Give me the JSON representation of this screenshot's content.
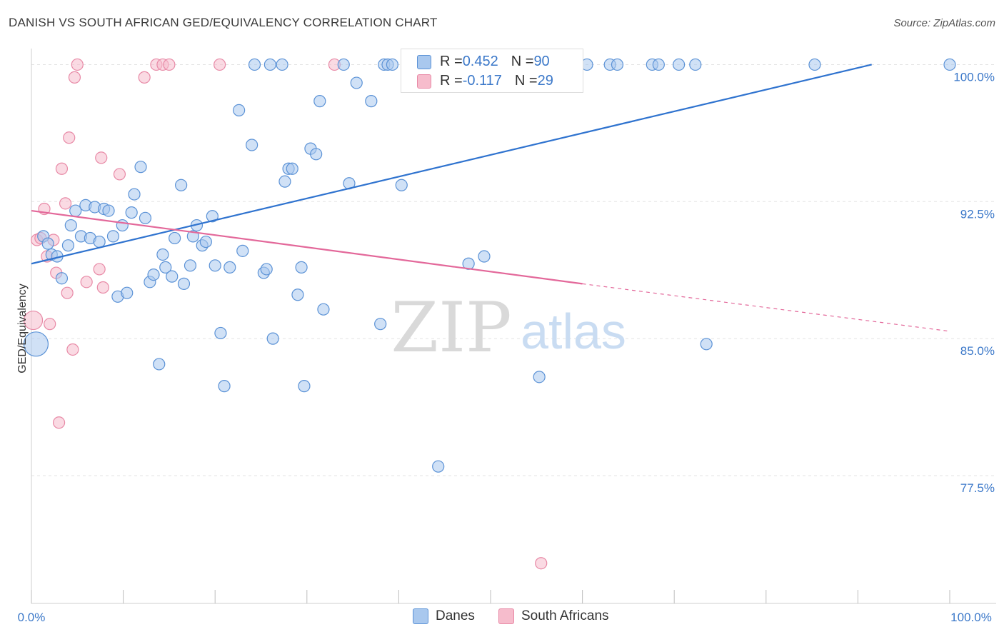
{
  "title": "DANISH VS SOUTH AFRICAN GED/EQUIVALENCY CORRELATION CHART",
  "source": "Source: ZipAtlas.com",
  "watermark": {
    "zip": "ZIP",
    "atlas": "atlas"
  },
  "colors": {
    "danes_fill": "#a9c8ee",
    "danes_stroke": "#5b92d6",
    "danes_line": "#2f73cf",
    "sa_fill": "#f6bccc",
    "sa_stroke": "#e889a6",
    "sa_line": "#e3689a",
    "tick_text": "#3b78c9",
    "grid": "#e3e3e3"
  },
  "stats": [
    {
      "r_label": "R = ",
      "r_value": "0.452",
      "n_label": "N = ",
      "n_value": "90"
    },
    {
      "r_label": "R = ",
      "r_value": "-0.117",
      "n_label": "N = ",
      "n_value": "29"
    }
  ],
  "chart_data": {
    "type": "scatter",
    "title": "DANISH VS SOUTH AFRICAN GED/EQUIVALENCY CORRELATION CHART",
    "xlabel": "",
    "ylabel": "GED/Equivalency",
    "xlim": [
      0,
      100
    ],
    "ylim": [
      70.5,
      100.8
    ],
    "x_tick_labels": [
      "0.0%",
      "100.0%"
    ],
    "y_ticks": [
      77.5,
      85.0,
      92.5,
      100.0
    ],
    "y_tick_labels": [
      "77.5%",
      "85.0%",
      "92.5%",
      "100.0%"
    ],
    "legend": [
      "Danes",
      "South Africans"
    ],
    "series": [
      {
        "name": "Danes",
        "trend": {
          "x": [
            0,
            91.5
          ],
          "y": [
            89.1,
            100.0
          ]
        },
        "points": [
          [
            0.5,
            84.7,
            3
          ],
          [
            1.3,
            90.6,
            1
          ],
          [
            1.8,
            90.2,
            1
          ],
          [
            2.2,
            89.6,
            1
          ],
          [
            2.8,
            89.5,
            1
          ],
          [
            3.3,
            88.3,
            1
          ],
          [
            4.0,
            90.1,
            1
          ],
          [
            4.3,
            91.2,
            1
          ],
          [
            4.8,
            92.0,
            1
          ],
          [
            5.4,
            90.6,
            1
          ],
          [
            5.9,
            92.3,
            1
          ],
          [
            6.4,
            90.5,
            1
          ],
          [
            6.9,
            92.2,
            1
          ],
          [
            7.4,
            90.3,
            1
          ],
          [
            7.9,
            92.1,
            1
          ],
          [
            8.4,
            92.0,
            1
          ],
          [
            8.9,
            90.6,
            1
          ],
          [
            9.4,
            87.3,
            1
          ],
          [
            9.9,
            91.2,
            1
          ],
          [
            10.4,
            87.5,
            1
          ],
          [
            10.9,
            91.9,
            1
          ],
          [
            11.2,
            92.9,
            1
          ],
          [
            11.9,
            94.4,
            1
          ],
          [
            12.4,
            91.6,
            1
          ],
          [
            12.9,
            88.1,
            1
          ],
          [
            13.3,
            88.5,
            1
          ],
          [
            13.9,
            83.6,
            1
          ],
          [
            14.3,
            89.6,
            1
          ],
          [
            14.6,
            88.9,
            1
          ],
          [
            15.3,
            88.4,
            1
          ],
          [
            15.6,
            90.5,
            1
          ],
          [
            16.3,
            93.4,
            1
          ],
          [
            16.6,
            88.0,
            1
          ],
          [
            17.3,
            89.0,
            1
          ],
          [
            17.6,
            90.6,
            1
          ],
          [
            18.0,
            91.2,
            1
          ],
          [
            18.6,
            90.1,
            1
          ],
          [
            19.0,
            90.3,
            1
          ],
          [
            19.7,
            91.7,
            1
          ],
          [
            20.0,
            89.0,
            1
          ],
          [
            20.6,
            85.3,
            1
          ],
          [
            21.0,
            82.4,
            1
          ],
          [
            21.6,
            88.9,
            1
          ],
          [
            22.6,
            97.5,
            1
          ],
          [
            23.0,
            89.8,
            1
          ],
          [
            24.0,
            95.6,
            1
          ],
          [
            24.3,
            100.0,
            1
          ],
          [
            25.3,
            88.6,
            1
          ],
          [
            25.6,
            88.8,
            1
          ],
          [
            26.0,
            100.0,
            1
          ],
          [
            26.3,
            85.0,
            1
          ],
          [
            27.3,
            100.0,
            1
          ],
          [
            27.6,
            93.6,
            1
          ],
          [
            28.0,
            94.3,
            1
          ],
          [
            28.4,
            94.3,
            1
          ],
          [
            29.0,
            87.4,
            1
          ],
          [
            29.4,
            88.9,
            1
          ],
          [
            29.7,
            82.4,
            1
          ],
          [
            30.4,
            95.4,
            1
          ],
          [
            31.0,
            95.1,
            1
          ],
          [
            31.4,
            98.0,
            1
          ],
          [
            31.8,
            86.6,
            1
          ],
          [
            34.0,
            100.0,
            1
          ],
          [
            34.6,
            93.5,
            1
          ],
          [
            35.4,
            99.0,
            1
          ],
          [
            37.0,
            98.0,
            1
          ],
          [
            38.0,
            85.8,
            1
          ],
          [
            38.4,
            100.0,
            1
          ],
          [
            38.8,
            100.0,
            1
          ],
          [
            39.3,
            100.0,
            1
          ],
          [
            40.3,
            93.4,
            1
          ],
          [
            42.0,
            100.0,
            1
          ],
          [
            44.3,
            78.0,
            1
          ],
          [
            44.7,
            100.0,
            1
          ],
          [
            47.6,
            89.1,
            1
          ],
          [
            49.3,
            89.5,
            1
          ],
          [
            52.3,
            100.0,
            1
          ],
          [
            54.3,
            100.0,
            1
          ],
          [
            55.3,
            82.9,
            1
          ],
          [
            58.0,
            100.0,
            1
          ],
          [
            60.5,
            100.0,
            1
          ],
          [
            63.0,
            100.0,
            1
          ],
          [
            63.8,
            100.0,
            1
          ],
          [
            67.6,
            100.0,
            1
          ],
          [
            68.3,
            100.0,
            1
          ],
          [
            70.5,
            100.0,
            1
          ],
          [
            72.3,
            100.0,
            1
          ],
          [
            73.5,
            84.7,
            1
          ],
          [
            85.3,
            100.0,
            1
          ],
          [
            100.0,
            100.0,
            1
          ]
        ]
      },
      {
        "name": "South Africans",
        "trend": {
          "x": [
            0,
            60
          ],
          "y": [
            92.0,
            88.0
          ]
        },
        "trend_dashed": {
          "x": [
            60,
            100
          ],
          "y": [
            88.0,
            85.4
          ]
        },
        "points": [
          [
            0.2,
            86.0,
            2
          ],
          [
            0.6,
            90.4,
            1
          ],
          [
            1.0,
            90.5,
            1
          ],
          [
            1.4,
            92.1,
            1
          ],
          [
            1.7,
            89.5,
            1
          ],
          [
            2.0,
            85.8,
            1
          ],
          [
            2.4,
            90.4,
            1
          ],
          [
            2.7,
            88.6,
            1
          ],
          [
            3.0,
            80.4,
            1
          ],
          [
            3.3,
            94.3,
            1
          ],
          [
            3.7,
            92.4,
            1
          ],
          [
            3.9,
            87.5,
            1
          ],
          [
            4.1,
            96.0,
            1
          ],
          [
            4.5,
            84.4,
            1
          ],
          [
            4.7,
            99.3,
            1
          ],
          [
            5.0,
            100.0,
            1
          ],
          [
            6.0,
            88.1,
            1
          ],
          [
            7.4,
            88.8,
            1
          ],
          [
            7.6,
            94.9,
            1
          ],
          [
            7.8,
            87.8,
            1
          ],
          [
            9.6,
            94.0,
            1
          ],
          [
            12.3,
            99.3,
            1
          ],
          [
            13.6,
            100.0,
            1
          ],
          [
            14.3,
            100.0,
            1
          ],
          [
            15.0,
            100.0,
            1
          ],
          [
            20.5,
            100.0,
            1
          ],
          [
            33.0,
            100.0,
            1
          ],
          [
            55.5,
            72.7,
            1
          ]
        ]
      }
    ]
  }
}
